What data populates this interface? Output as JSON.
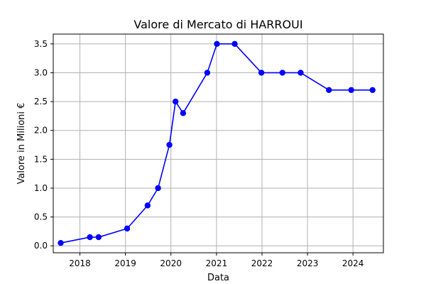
{
  "chart_data": {
    "type": "line",
    "title": "Valore di Mercato di HARROUI",
    "xlabel": "Data",
    "ylabel": "Valore in Milioni €",
    "x_ticks": [
      "2018",
      "2019",
      "2020",
      "2021",
      "2022",
      "2023",
      "2024"
    ],
    "y_ticks": [
      "0.0",
      "0.5",
      "1.0",
      "1.5",
      "2.0",
      "2.5",
      "3.0",
      "3.5"
    ],
    "xlim": [
      "2017-06-01",
      "2024-09-01"
    ],
    "ylim": [
      -0.12,
      3.67
    ],
    "grid": true,
    "series": [
      {
        "color": "#0000ff",
        "marker": "circle",
        "x": [
          "2017-07-31",
          "2018-03-22",
          "2018-05-31",
          "2019-01-15",
          "2019-06-28",
          "2019-09-20",
          "2019-12-20",
          "2020-02-07",
          "2020-04-08",
          "2020-10-19",
          "2021-01-04",
          "2021-05-27",
          "2021-12-27",
          "2022-06-14",
          "2022-11-07",
          "2023-06-22",
          "2023-12-18",
          "2024-06-06"
        ],
        "y": [
          0.05,
          0.15,
          0.15,
          0.3,
          0.7,
          1.0,
          1.75,
          2.5,
          2.3,
          3.0,
          3.5,
          3.5,
          3.0,
          3.0,
          3.0,
          2.7,
          2.7,
          2.7
        ]
      }
    ]
  }
}
